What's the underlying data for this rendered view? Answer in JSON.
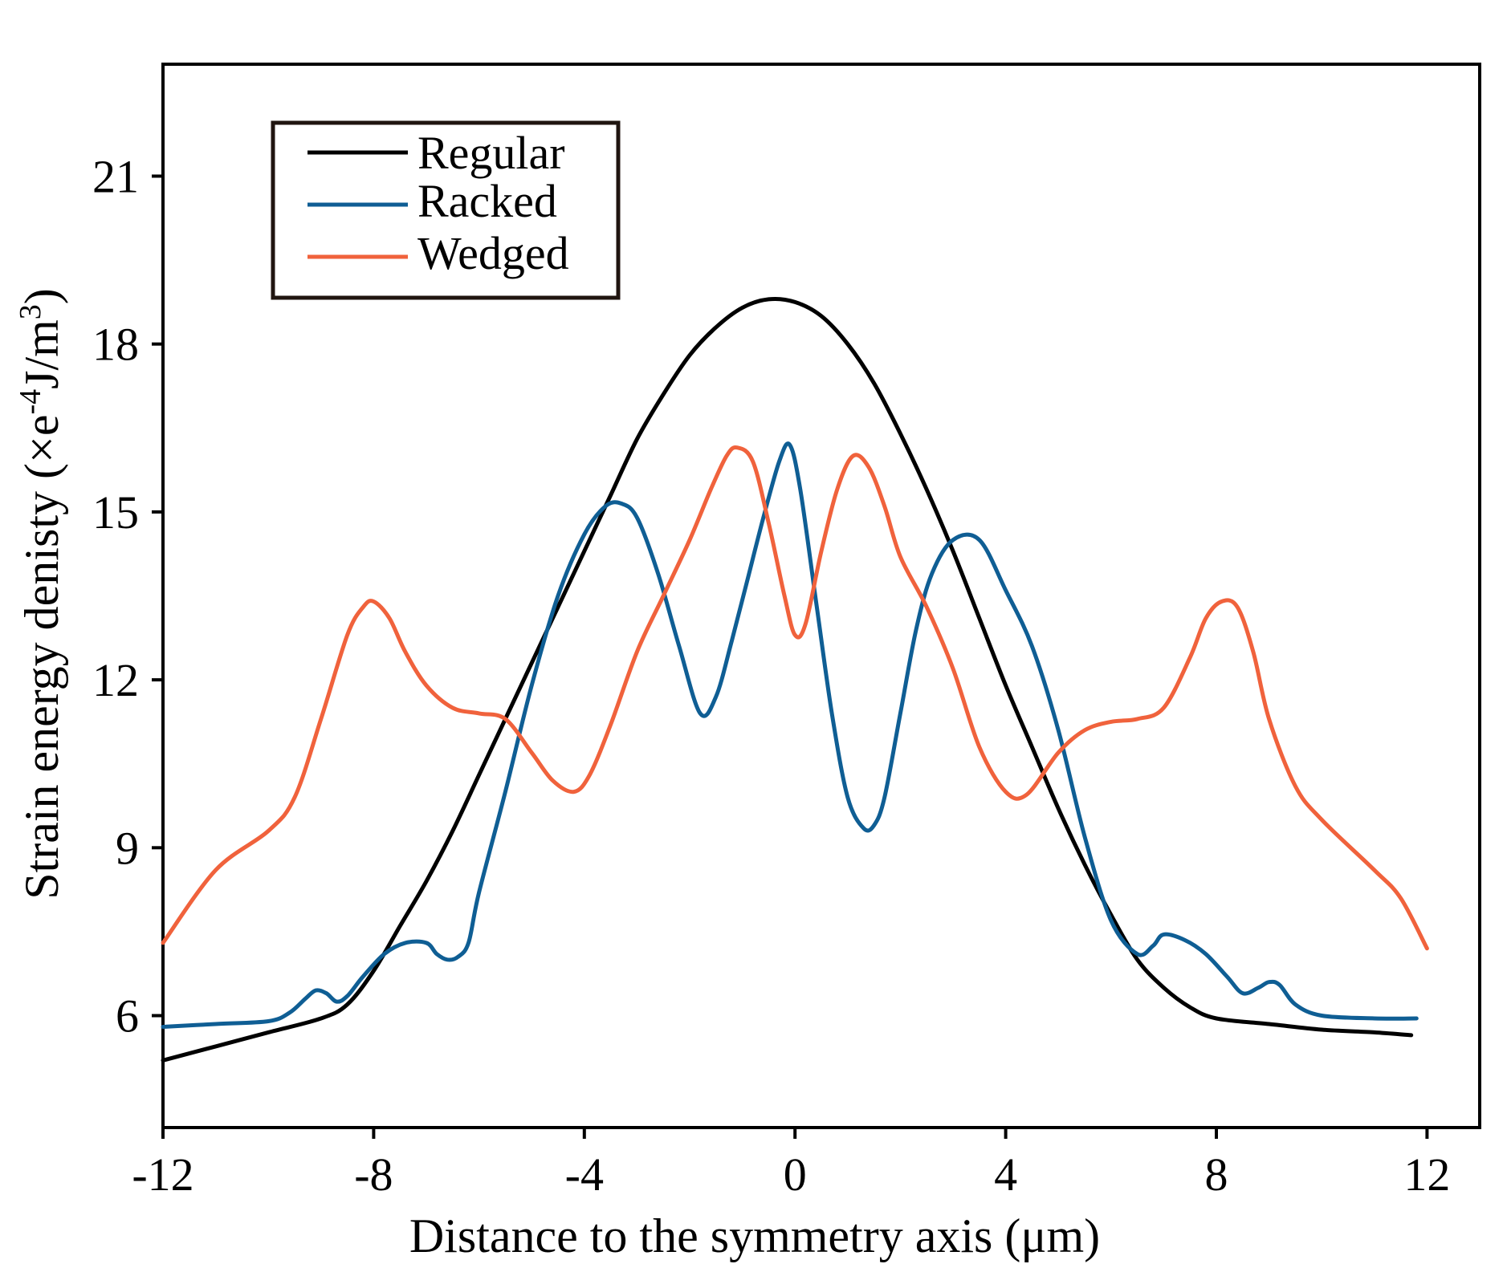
{
  "chart_data": {
    "type": "line",
    "title": "",
    "xlabel": "Distance to the symmetry axis (μm)",
    "ylabel_text": "Strain energy denisty (×e",
    "ylabel_exp1": "-4",
    "ylabel_unit": "J/m",
    "ylabel_exp2": "3",
    "ylabel_close": ")",
    "xlim": [
      -12,
      13
    ],
    "ylim": [
      4,
      23
    ],
    "xticks": [
      -12,
      -8,
      -4,
      0,
      4,
      8,
      12
    ],
    "xtick_labels": [
      "-12",
      "-8",
      "-4",
      "0",
      "4",
      "8",
      "12"
    ],
    "yticks": [
      6,
      9,
      12,
      15,
      18,
      21
    ],
    "ytick_labels": [
      "6",
      "9",
      "12",
      "15",
      "18",
      "21"
    ],
    "grid": false,
    "legend_position": "top-left",
    "series": [
      {
        "name": "Regular",
        "color": "#000000",
        "x": [
          -12,
          -11,
          -10,
          -9,
          -8.5,
          -8,
          -7.5,
          -7,
          -6.5,
          -6,
          -5.5,
          -5,
          -4.5,
          -4,
          -3.5,
          -3,
          -2.5,
          -2,
          -1.5,
          -1,
          -0.5,
          0,
          0.5,
          1,
          1.5,
          2,
          2.5,
          3,
          3.5,
          4,
          4.5,
          5,
          5.5,
          6,
          6.5,
          7,
          7.5,
          8,
          9,
          10,
          11,
          11.7
        ],
        "values": [
          5.2,
          5.45,
          5.7,
          5.95,
          6.2,
          6.8,
          7.6,
          8.4,
          9.3,
          10.3,
          11.3,
          12.3,
          13.3,
          14.3,
          15.3,
          16.3,
          17.1,
          17.8,
          18.3,
          18.65,
          18.8,
          18.75,
          18.5,
          18.0,
          17.3,
          16.4,
          15.4,
          14.3,
          13.1,
          11.9,
          10.8,
          9.7,
          8.7,
          7.8,
          7.0,
          6.5,
          6.15,
          5.95,
          5.85,
          5.75,
          5.7,
          5.65
        ]
      },
      {
        "name": "Racked",
        "color": "#0f5e94",
        "x": [
          -12,
          -11,
          -10,
          -9.6,
          -9.3,
          -9.1,
          -8.9,
          -8.7,
          -8.5,
          -8.2,
          -7.8,
          -7.4,
          -7.0,
          -6.8,
          -6.6,
          -6.4,
          -6.2,
          -6.0,
          -5.5,
          -5.0,
          -4.5,
          -4.0,
          -3.6,
          -3.3,
          -3.0,
          -2.6,
          -2.2,
          -1.8,
          -1.5,
          -1.2,
          -0.9,
          -0.6,
          -0.3,
          -0.1,
          0.1,
          0.4,
          0.7,
          1.0,
          1.3,
          1.5,
          1.7,
          2.0,
          2.3,
          2.6,
          3.0,
          3.5,
          4.0,
          4.5,
          5.0,
          5.5,
          6.0,
          6.5,
          6.8,
          7.0,
          7.4,
          7.8,
          8.2,
          8.5,
          8.8,
          9.0,
          9.2,
          9.5,
          10,
          11,
          11.8
        ],
        "values": [
          5.8,
          5.85,
          5.9,
          6.05,
          6.3,
          6.45,
          6.4,
          6.25,
          6.35,
          6.7,
          7.1,
          7.3,
          7.3,
          7.1,
          7.0,
          7.05,
          7.3,
          8.2,
          10.0,
          11.9,
          13.5,
          14.6,
          15.1,
          15.15,
          14.9,
          13.9,
          12.6,
          11.4,
          11.7,
          12.7,
          13.8,
          14.9,
          15.9,
          16.2,
          15.4,
          13.4,
          11.4,
          9.9,
          9.35,
          9.4,
          9.9,
          11.4,
          12.9,
          13.9,
          14.5,
          14.5,
          13.6,
          12.6,
          11.1,
          9.2,
          7.7,
          7.1,
          7.25,
          7.45,
          7.35,
          7.1,
          6.7,
          6.4,
          6.5,
          6.6,
          6.55,
          6.2,
          6.0,
          5.95,
          5.95
        ]
      },
      {
        "name": "Wedged",
        "color": "#f0623c",
        "x": [
          -12,
          -11,
          -10,
          -9.5,
          -9,
          -8.5,
          -8.2,
          -8.0,
          -7.7,
          -7.4,
          -7.0,
          -6.5,
          -6,
          -5.5,
          -5,
          -4.6,
          -4.2,
          -3.9,
          -3.5,
          -3.0,
          -2.5,
          -2.0,
          -1.6,
          -1.3,
          -1.1,
          -0.8,
          -0.5,
          -0.2,
          0.0,
          0.2,
          0.5,
          0.8,
          1.1,
          1.4,
          1.7,
          2.0,
          2.5,
          3.0,
          3.5,
          4.0,
          4.4,
          5.0,
          5.5,
          6.0,
          6.5,
          7.0,
          7.5,
          7.8,
          8.1,
          8.4,
          8.7,
          9.0,
          9.5,
          10,
          11,
          11.5,
          12.0
        ],
        "values": [
          7.3,
          8.6,
          9.3,
          9.9,
          11.3,
          12.8,
          13.3,
          13.4,
          13.1,
          12.5,
          11.9,
          11.5,
          11.4,
          11.3,
          10.7,
          10.2,
          10.0,
          10.3,
          11.2,
          12.5,
          13.5,
          14.5,
          15.4,
          16.0,
          16.15,
          15.9,
          14.8,
          13.5,
          12.8,
          13.0,
          14.3,
          15.4,
          16.0,
          15.8,
          15.1,
          14.2,
          13.3,
          12.2,
          10.8,
          10.0,
          9.95,
          10.7,
          11.1,
          11.25,
          11.3,
          11.5,
          12.4,
          13.1,
          13.4,
          13.3,
          12.5,
          11.3,
          10.1,
          9.5,
          8.6,
          8.1,
          7.2
        ]
      }
    ]
  }
}
